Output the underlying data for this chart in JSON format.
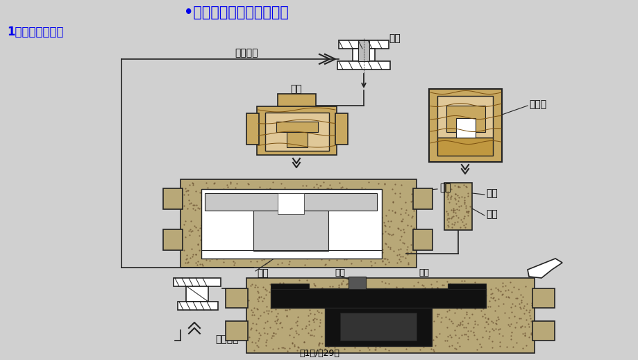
{
  "bg_color": "#d0d0d0",
  "title": "•二、零件常见的工艺结构",
  "subtitle": "1、铸造工艺结构",
  "footer": "第1页/共29页",
  "label_color": "#0000ee",
  "lc": "#222222",
  "sand_color": "#b8a878",
  "sand_dot_color": "#6a5030",
  "wood_color": "#c8a860",
  "labels": {
    "ling_jian": "零件",
    "qie_xiao_jia_gong": "切削加工",
    "mu_mo": "木模",
    "ni_xin_xiang": "泥芯箱",
    "sha_xing": "砂型",
    "ni_xin": "泥芯",
    "jiao_zhu": "浇铸",
    "zhu_jian": "铸件",
    "mao_kou": "冒口",
    "jiao_kou": "浇口",
    "luo_sha_qing_li": "落砂清理"
  }
}
